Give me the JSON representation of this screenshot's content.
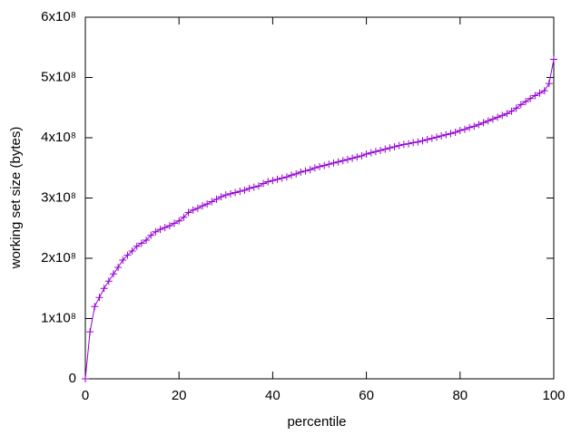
{
  "chart_data": {
    "type": "line",
    "xlabel": "percentile",
    "ylabel": "working set size (bytes)",
    "color": "#9400d3",
    "x": [
      0,
      1,
      2,
      3,
      4,
      5,
      6,
      7,
      8,
      9,
      10,
      11,
      12,
      13,
      14,
      15,
      16,
      17,
      18,
      19,
      20,
      21,
      22,
      23,
      24,
      25,
      26,
      27,
      28,
      29,
      30,
      31,
      32,
      33,
      34,
      35,
      36,
      37,
      38,
      39,
      40,
      41,
      42,
      43,
      44,
      45,
      46,
      47,
      48,
      49,
      50,
      51,
      52,
      53,
      54,
      55,
      56,
      57,
      58,
      59,
      60,
      61,
      62,
      63,
      64,
      65,
      66,
      67,
      68,
      69,
      70,
      71,
      72,
      73,
      74,
      75,
      76,
      77,
      78,
      79,
      80,
      81,
      82,
      83,
      84,
      85,
      86,
      87,
      88,
      89,
      90,
      91,
      92,
      93,
      94,
      95,
      96,
      97,
      98,
      99,
      100
    ],
    "values": [
      0,
      78000000,
      120000000,
      135000000,
      150000000,
      162000000,
      174000000,
      185000000,
      197000000,
      205000000,
      212000000,
      220000000,
      225000000,
      230000000,
      238000000,
      244000000,
      248000000,
      251000000,
      254000000,
      258000000,
      262000000,
      268000000,
      276000000,
      280000000,
      283000000,
      287000000,
      290000000,
      294000000,
      298000000,
      302000000,
      305000000,
      307000000,
      309000000,
      311000000,
      313000000,
      316000000,
      318000000,
      320000000,
      324000000,
      327000000,
      329000000,
      331000000,
      333000000,
      335000000,
      338000000,
      340000000,
      343000000,
      345000000,
      347000000,
      350000000,
      352000000,
      354000000,
      356000000,
      358000000,
      360000000,
      362000000,
      364000000,
      366000000,
      368000000,
      370000000,
      373000000,
      375000000,
      377000000,
      379000000,
      381000000,
      383000000,
      385000000,
      387000000,
      389000000,
      390000000,
      392000000,
      393000000,
      395000000,
      397000000,
      399000000,
      401000000,
      403000000,
      405000000,
      407000000,
      409000000,
      412000000,
      414000000,
      417000000,
      419000000,
      422000000,
      425000000,
      428000000,
      431000000,
      434000000,
      437000000,
      440000000,
      444000000,
      449000000,
      455000000,
      460000000,
      465000000,
      470000000,
      474000000,
      478000000,
      490000000,
      530000000
    ],
    "xlim": [
      0,
      100
    ],
    "xticks": [
      0,
      20,
      40,
      60,
      80,
      100
    ],
    "ylim": [
      0,
      600000000
    ],
    "yticks": [
      0,
      {
        "value": 100000000,
        "label": "1x10⁸"
      },
      {
        "value": 200000000,
        "label": "2x10⁸"
      },
      {
        "value": 300000000,
        "label": "3x10⁸"
      },
      {
        "value": 400000000,
        "label": "4x10⁸"
      },
      {
        "value": 500000000,
        "label": "5x10⁸"
      },
      {
        "value": 600000000,
        "label": "6x10⁸"
      }
    ]
  }
}
